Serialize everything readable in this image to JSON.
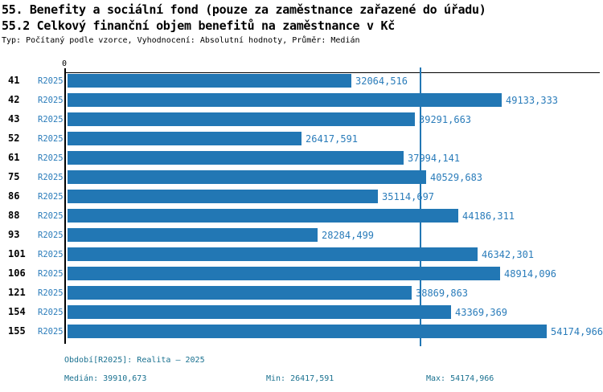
{
  "header": {
    "title_line1": "55. Benefity a sociální fond (pouze za zaměstnance zařazené do úřadu)",
    "title_line2": "55.2 Celkový finanční objem benefitů na zaměstnance v Kč",
    "subtitle": "Typ: Počítaný podle vzorce, Vyhodnocení: Absolutní hodnoty, Průměr: Medián"
  },
  "chart_data": {
    "type": "bar",
    "orientation": "horizontal",
    "title": "55.2 Celkový finanční objem benefitů na zaměstnance v Kč",
    "series_label": "R2025",
    "categories": [
      "41",
      "42",
      "43",
      "52",
      "61",
      "75",
      "86",
      "88",
      "93",
      "101",
      "106",
      "121",
      "154",
      "155"
    ],
    "values": [
      32064.516,
      49133.333,
      39291.663,
      26417.591,
      37994.141,
      40529.683,
      35114.697,
      44186.311,
      28284.499,
      46342.301,
      48914.096,
      38869.863,
      43369.369,
      54174.966
    ],
    "value_labels": [
      "32064,516",
      "49133,333",
      "39291,663",
      "26417,591",
      "37994,141",
      "40529,683",
      "35114,697",
      "44186,311",
      "28284,499",
      "46342,301",
      "48914,096",
      "38869,863",
      "43369,369",
      "54174,966"
    ],
    "axis": {
      "origin_label": "0",
      "xmin": 0,
      "xmax": 60000,
      "grid": false
    },
    "median_value": 39910.673,
    "min_value": 26417.591,
    "max_value": 54174.966,
    "legend_position": "none",
    "colors": {
      "bar": "#2277b4",
      "median_line": "#2277b4",
      "series_text": "#2a7cba",
      "footer_text": "#1a7190",
      "axis": "#000000"
    }
  },
  "footer": {
    "period_label": "Období[R2025]: Realita – 2025",
    "median_label": "Medián: 39910,673",
    "min_label": "Min: 26417,591",
    "max_label": "Max: 54174,966"
  }
}
